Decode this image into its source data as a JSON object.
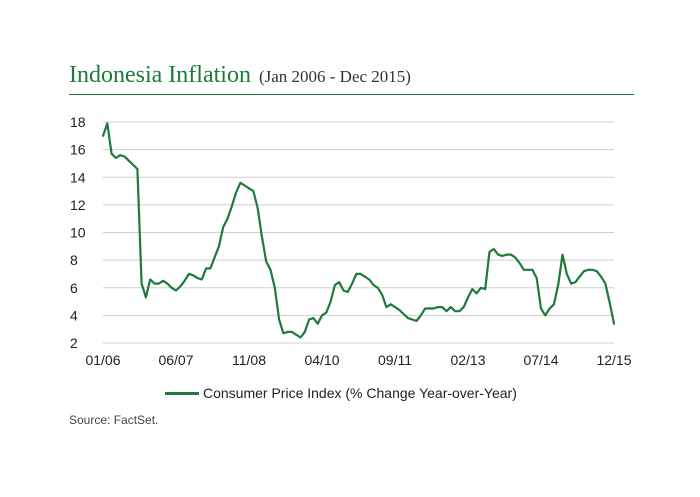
{
  "header": {
    "title": "Indonesia Inflation",
    "subtitle": "(Jan 2006 - Dec 2015)"
  },
  "colors": {
    "accent": "#1d7a3c",
    "grid": "#cfcfcf",
    "text": "#222222"
  },
  "footer": {
    "source": "Source: FactSet."
  },
  "chart_data": {
    "type": "line",
    "title": "Indonesia Inflation",
    "xlabel": "",
    "ylabel": "",
    "ylim": [
      2,
      18
    ],
    "yticks": [
      2,
      4,
      6,
      8,
      10,
      12,
      14,
      16,
      18
    ],
    "xticks": [
      "01/06",
      "06/07",
      "11/08",
      "04/10",
      "09/11",
      "02/13",
      "07/14",
      "12/15"
    ],
    "grid": true,
    "legend_position": "bottom",
    "series": [
      {
        "name": "Consumer Price Index (% Change Year-over-Year)",
        "color": "#1d7a3c",
        "x": [
          "2006-01",
          "2006-02",
          "2006-03",
          "2006-04",
          "2006-05",
          "2006-06",
          "2006-07",
          "2006-08",
          "2006-09",
          "2006-10",
          "2006-11",
          "2006-12",
          "2007-01",
          "2007-02",
          "2007-03",
          "2007-04",
          "2007-05",
          "2007-06",
          "2007-07",
          "2007-08",
          "2007-09",
          "2007-10",
          "2007-11",
          "2007-12",
          "2008-01",
          "2008-02",
          "2008-03",
          "2008-04",
          "2008-05",
          "2008-06",
          "2008-07",
          "2008-08",
          "2008-09",
          "2008-10",
          "2008-11",
          "2008-12",
          "2009-01",
          "2009-02",
          "2009-03",
          "2009-04",
          "2009-05",
          "2009-06",
          "2009-07",
          "2009-08",
          "2009-09",
          "2009-10",
          "2009-11",
          "2009-12",
          "2010-01",
          "2010-02",
          "2010-03",
          "2010-04",
          "2010-05",
          "2010-06",
          "2010-07",
          "2010-08",
          "2010-09",
          "2010-10",
          "2010-11",
          "2010-12",
          "2011-01",
          "2011-02",
          "2011-03",
          "2011-04",
          "2011-05",
          "2011-06",
          "2011-07",
          "2011-08",
          "2011-09",
          "2011-10",
          "2011-11",
          "2011-12",
          "2012-01",
          "2012-02",
          "2012-03",
          "2012-04",
          "2012-05",
          "2012-06",
          "2012-07",
          "2012-08",
          "2012-09",
          "2012-10",
          "2012-11",
          "2012-12",
          "2013-01",
          "2013-02",
          "2013-03",
          "2013-04",
          "2013-05",
          "2013-06",
          "2013-07",
          "2013-08",
          "2013-09",
          "2013-10",
          "2013-11",
          "2013-12",
          "2014-01",
          "2014-02",
          "2014-03",
          "2014-04",
          "2014-05",
          "2014-06",
          "2014-07",
          "2014-08",
          "2014-09",
          "2014-10",
          "2014-11",
          "2014-12",
          "2015-01",
          "2015-02",
          "2015-03",
          "2015-04",
          "2015-05",
          "2015-06",
          "2015-07",
          "2015-08",
          "2015-09",
          "2015-10",
          "2015-11",
          "2015-12"
        ],
        "values": [
          17.0,
          17.9,
          15.7,
          15.4,
          15.6,
          15.5,
          15.2,
          14.9,
          14.6,
          6.3,
          5.3,
          6.6,
          6.3,
          6.3,
          6.5,
          6.3,
          6.0,
          5.8,
          6.1,
          6.5,
          7.0,
          6.9,
          6.7,
          6.6,
          7.4,
          7.4,
          8.2,
          9.0,
          10.4,
          11.0,
          11.9,
          12.9,
          13.6,
          13.4,
          13.2,
          13.0,
          11.8,
          9.7,
          7.9,
          7.3,
          6.0,
          3.7,
          2.7,
          2.8,
          2.8,
          2.6,
          2.4,
          2.8,
          3.7,
          3.8,
          3.4,
          4.0,
          4.2,
          5.0,
          6.2,
          6.4,
          5.8,
          5.7,
          6.3,
          7.0,
          7.0,
          6.8,
          6.6,
          6.2,
          6.0,
          5.5,
          4.6,
          4.8,
          4.6,
          4.4,
          4.1,
          3.8,
          3.7,
          3.6,
          4.0,
          4.5,
          4.5,
          4.5,
          4.6,
          4.6,
          4.3,
          4.6,
          4.3,
          4.3,
          4.6,
          5.3,
          5.9,
          5.6,
          6.0,
          5.9,
          8.6,
          8.8,
          8.4,
          8.3,
          8.4,
          8.4,
          8.2,
          7.8,
          7.3,
          7.3,
          7.3,
          6.7,
          4.5,
          4.0,
          4.5,
          4.8,
          6.2,
          8.4,
          7.0,
          6.3,
          6.4,
          6.8,
          7.2,
          7.3,
          7.3,
          7.2,
          6.8,
          6.3,
          4.9,
          3.4
        ]
      }
    ]
  }
}
